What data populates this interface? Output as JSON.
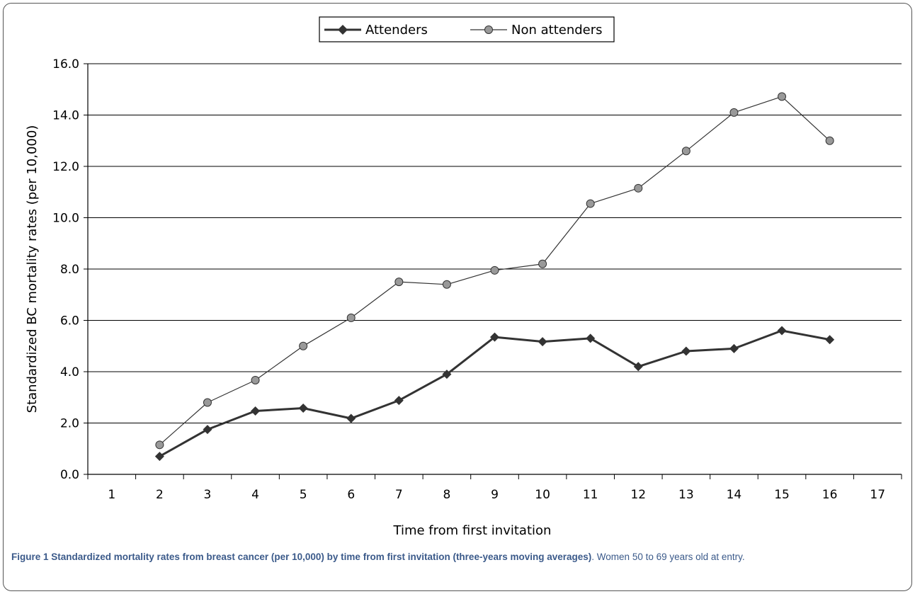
{
  "chart_data": {
    "type": "line",
    "title": "",
    "xlabel": "Time from first invitation",
    "ylabel": "Standardized BC mortality rates (per 10,000)",
    "categories": [
      "1",
      "2",
      "3",
      "4",
      "5",
      "6",
      "7",
      "8",
      "9",
      "10",
      "11",
      "12",
      "13",
      "14",
      "15",
      "16",
      "17"
    ],
    "ylim": [
      0,
      16
    ],
    "yticks": [
      "0.0",
      "2.0",
      "4.0",
      "6.0",
      "8.0",
      "10.0",
      "12.0",
      "14.0",
      "16.0"
    ],
    "grid": "horizontal",
    "legend_position": "top-center",
    "series": [
      {
        "name": "Attenders",
        "marker": "diamond",
        "color": "#333333",
        "values": [
          null,
          0.7,
          1.75,
          2.47,
          2.58,
          2.18,
          2.88,
          3.9,
          5.35,
          5.17,
          5.3,
          4.2,
          4.8,
          4.9,
          5.6,
          5.25,
          null
        ]
      },
      {
        "name": "Non attenders",
        "marker": "circle",
        "color": "#333333",
        "values": [
          null,
          1.15,
          2.8,
          3.67,
          5.0,
          6.1,
          7.5,
          7.4,
          7.95,
          8.2,
          10.55,
          11.15,
          12.6,
          14.1,
          14.72,
          13.0,
          null
        ]
      }
    ]
  },
  "caption": {
    "label": "Figure 1",
    "title": "Standardized mortality rates from breast cancer (per 10,000) by time from first invitation (three-years moving averages)",
    "rest": ". Women 50 to 69 years old at entry."
  }
}
